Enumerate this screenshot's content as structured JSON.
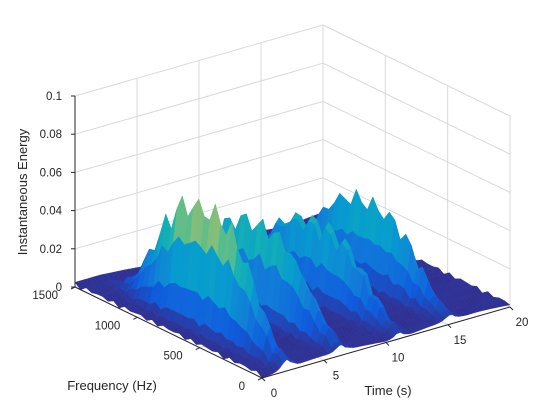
{
  "chart_data": {
    "type": "surface",
    "title": "",
    "xlabel": "Time (s)",
    "ylabel": "Frequency (Hz)",
    "zlabel": "Instantaneous Energy",
    "xlim": [
      0,
      20
    ],
    "ylim": [
      0,
      1500
    ],
    "zlim": [
      0,
      0.1
    ],
    "x_ticks": [
      0,
      5,
      10,
      15,
      20
    ],
    "y_ticks": [
      0,
      500,
      1000,
      1500
    ],
    "z_ticks": [
      0,
      0.02,
      0.04,
      0.06,
      0.08,
      0.1
    ],
    "x_tick_labels": [
      "0",
      "5",
      "10",
      "15",
      "20"
    ],
    "y_tick_labels": [
      "0",
      "500",
      "1000",
      "1500"
    ],
    "z_tick_labels": [
      "0",
      "0.02",
      "0.04",
      "0.06",
      "0.08",
      "0.1"
    ],
    "grid": true,
    "colormap": "parula",
    "colors": {
      "low": "#352a87",
      "mid": "#1f9fd4",
      "high": "#f9fb0e",
      "grid": "#d9d9d9",
      "axis": "#262626"
    },
    "peaks": [
      {
        "time": 2.0,
        "frequency_range": [
          150,
          1150
        ],
        "peak_energy": 0.068
      },
      {
        "time": 6.4,
        "frequency_range": [
          150,
          1150
        ],
        "peak_energy": 0.056
      },
      {
        "time": 11.0,
        "frequency_range": [
          150,
          1150
        ],
        "peak_energy": 0.045
      },
      {
        "time": 15.2,
        "frequency_range": [
          150,
          1150
        ],
        "peak_energy": 0.046
      }
    ]
  }
}
